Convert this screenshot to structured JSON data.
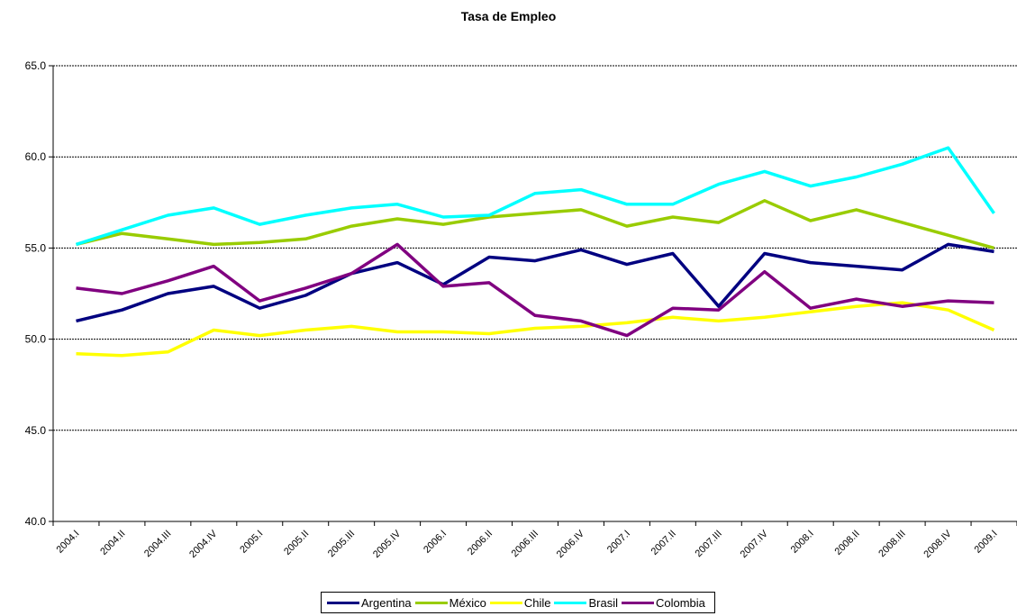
{
  "chart_data": {
    "type": "line",
    "title": "Tasa de Empleo",
    "xlabel": "",
    "ylabel": "",
    "ylim": [
      40.0,
      65.0
    ],
    "yticks": [
      "40.0",
      "45.0",
      "50.0",
      "55.0",
      "60.0",
      "65.0"
    ],
    "ytick_values": [
      40,
      45,
      50,
      55,
      60,
      65
    ],
    "grid": true,
    "legend_position": "bottom",
    "categories": [
      "2004.I",
      "2004.II",
      "2004.III",
      "2004.IV",
      "2005.I",
      "2005.II",
      "2005.III",
      "2005.IV",
      "2006.I",
      "2006.II",
      "2006.III",
      "2006.IV",
      "2007.I",
      "2007.II",
      "2007.III",
      "2007.IV",
      "2008.I",
      "2008.II",
      "2008.III",
      "2008.IV",
      "2009.I"
    ],
    "series": [
      {
        "name": "Argentina",
        "color": "#000080",
        "values": [
          51.0,
          51.6,
          52.5,
          52.9,
          51.7,
          52.4,
          53.6,
          54.2,
          53.0,
          54.5,
          54.3,
          54.9,
          54.1,
          54.7,
          51.8,
          54.7,
          54.2,
          54.0,
          53.8,
          55.2,
          54.8
        ]
      },
      {
        "name": "México",
        "color": "#99CC00",
        "values": [
          55.2,
          55.8,
          55.5,
          55.2,
          55.3,
          55.5,
          56.2,
          56.6,
          56.3,
          56.7,
          56.9,
          57.1,
          56.2,
          56.7,
          56.4,
          57.6,
          56.5,
          57.1,
          56.4,
          55.7,
          55.0
        ]
      },
      {
        "name": "Chile",
        "color": "#FFFF00",
        "values": [
          49.2,
          49.1,
          49.3,
          50.5,
          50.2,
          50.5,
          50.7,
          50.4,
          50.4,
          50.3,
          50.6,
          50.7,
          50.9,
          51.2,
          51.0,
          51.2,
          51.5,
          51.8,
          52.0,
          51.6,
          50.5
        ]
      },
      {
        "name": "Brasil",
        "color": "#00FFFF",
        "values": [
          55.2,
          56.0,
          56.8,
          57.2,
          56.3,
          56.8,
          57.2,
          57.4,
          56.7,
          56.8,
          58.0,
          58.2,
          57.4,
          57.4,
          58.5,
          59.2,
          58.4,
          58.9,
          59.6,
          60.5,
          56.9
        ]
      },
      {
        "name": "Colombia",
        "color": "#800080",
        "values": [
          52.8,
          52.5,
          53.2,
          54.0,
          52.1,
          52.8,
          53.6,
          55.2,
          52.9,
          53.1,
          51.3,
          51.0,
          50.2,
          51.7,
          51.6,
          53.7,
          51.7,
          52.2,
          51.8,
          52.1,
          52.0
        ]
      }
    ]
  }
}
